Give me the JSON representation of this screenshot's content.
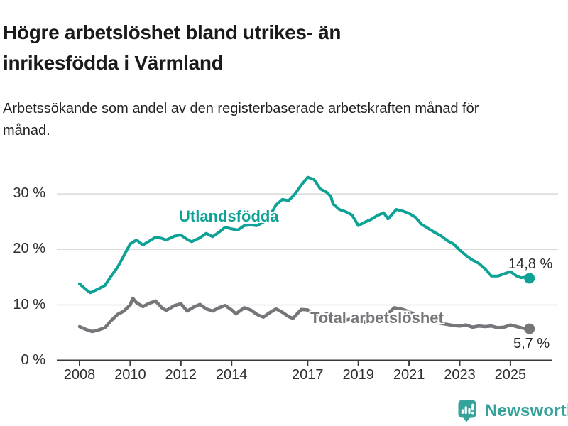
{
  "header": {
    "title": "Högre arbetslöshet bland utrikes- än inrikesfödda i Värmland",
    "subtitle": "Arbetssökande som andel av den registerbaserade arbetskraften månad för månad."
  },
  "chart_data": {
    "type": "line",
    "title": "Högre arbetslöshet bland utrikes- än inrikesfödda i Värmland",
    "subtitle": "Arbetssökande som andel av den registerbaserade arbetskraften månad för månad.",
    "unit": "%",
    "ylim": [
      0,
      35
    ],
    "x_range": [
      2008,
      2025.75
    ],
    "grid": "horizontal",
    "legend_position": "inline-labels",
    "y_ticks": [
      {
        "value": 0,
        "label": "0 %"
      },
      {
        "value": 10,
        "label": "10 %"
      },
      {
        "value": 20,
        "label": "20 %"
      },
      {
        "value": 30,
        "label": "30 %"
      }
    ],
    "x_ticks": [
      {
        "value": 2008,
        "label": "2008"
      },
      {
        "value": 2010,
        "label": "2010"
      },
      {
        "value": 2012,
        "label": "2012"
      },
      {
        "value": 2014,
        "label": "2014"
      },
      {
        "value": 2017,
        "label": "2017"
      },
      {
        "value": 2019,
        "label": "2019"
      },
      {
        "value": 2021,
        "label": "2021"
      },
      {
        "value": 2023,
        "label": "2023"
      },
      {
        "value": 2025,
        "label": "2025"
      }
    ],
    "series": [
      {
        "name": "Utlandsfödda",
        "color": "#0ca295",
        "end_label": "14,8 %",
        "end_value": 14.8,
        "points": [
          [
            2008.0,
            13.8
          ],
          [
            2008.25,
            12.8
          ],
          [
            2008.42,
            12.2
          ],
          [
            2008.75,
            12.9
          ],
          [
            2009.0,
            13.5
          ],
          [
            2009.25,
            15.2
          ],
          [
            2009.5,
            16.8
          ],
          [
            2009.75,
            18.9
          ],
          [
            2010.0,
            21.0
          ],
          [
            2010.25,
            21.7
          ],
          [
            2010.5,
            20.8
          ],
          [
            2010.75,
            21.5
          ],
          [
            2011.0,
            22.2
          ],
          [
            2011.25,
            22.0
          ],
          [
            2011.42,
            21.7
          ],
          [
            2011.75,
            22.4
          ],
          [
            2012.0,
            22.6
          ],
          [
            2012.25,
            21.8
          ],
          [
            2012.42,
            21.4
          ],
          [
            2012.75,
            22.1
          ],
          [
            2013.0,
            22.9
          ],
          [
            2013.25,
            22.3
          ],
          [
            2013.5,
            23.1
          ],
          [
            2013.75,
            24.0
          ],
          [
            2014.0,
            23.7
          ],
          [
            2014.25,
            23.5
          ],
          [
            2014.5,
            24.3
          ],
          [
            2014.75,
            24.4
          ],
          [
            2015.0,
            24.3
          ],
          [
            2015.25,
            24.9
          ],
          [
            2015.5,
            26.0
          ],
          [
            2015.75,
            28.0
          ],
          [
            2016.0,
            29.0
          ],
          [
            2016.25,
            28.8
          ],
          [
            2016.5,
            30.0
          ],
          [
            2016.75,
            31.6
          ],
          [
            2017.0,
            33.0
          ],
          [
            2017.25,
            32.6
          ],
          [
            2017.5,
            30.9
          ],
          [
            2017.75,
            30.3
          ],
          [
            2017.92,
            29.5
          ],
          [
            2018.0,
            28.2
          ],
          [
            2018.25,
            27.2
          ],
          [
            2018.5,
            26.8
          ],
          [
            2018.75,
            26.2
          ],
          [
            2019.0,
            24.3
          ],
          [
            2019.25,
            24.9
          ],
          [
            2019.5,
            25.4
          ],
          [
            2019.75,
            26.1
          ],
          [
            2020.0,
            26.6
          ],
          [
            2020.17,
            25.5
          ],
          [
            2020.5,
            27.2
          ],
          [
            2020.75,
            26.9
          ],
          [
            2021.0,
            26.5
          ],
          [
            2021.25,
            25.8
          ],
          [
            2021.5,
            24.5
          ],
          [
            2021.75,
            23.8
          ],
          [
            2022.0,
            23.1
          ],
          [
            2022.25,
            22.5
          ],
          [
            2022.5,
            21.6
          ],
          [
            2022.75,
            21.0
          ],
          [
            2023.0,
            19.9
          ],
          [
            2023.25,
            18.9
          ],
          [
            2023.5,
            18.1
          ],
          [
            2023.75,
            17.5
          ],
          [
            2024.0,
            16.5
          ],
          [
            2024.25,
            15.2
          ],
          [
            2024.5,
            15.2
          ],
          [
            2024.75,
            15.6
          ],
          [
            2025.0,
            16.0
          ],
          [
            2025.25,
            15.2
          ],
          [
            2025.42,
            14.9
          ],
          [
            2025.6,
            15.0
          ],
          [
            2025.75,
            14.8
          ]
        ]
      },
      {
        "name": "Total arbetslöshet",
        "color": "#76767a",
        "end_label": "5,7 %",
        "end_value": 5.7,
        "points": [
          [
            2008.0,
            6.1
          ],
          [
            2008.25,
            5.6
          ],
          [
            2008.5,
            5.2
          ],
          [
            2008.75,
            5.5
          ],
          [
            2009.0,
            5.9
          ],
          [
            2009.25,
            7.2
          ],
          [
            2009.5,
            8.3
          ],
          [
            2009.75,
            8.9
          ],
          [
            2010.0,
            10.0
          ],
          [
            2010.1,
            11.2
          ],
          [
            2010.25,
            10.4
          ],
          [
            2010.5,
            9.7
          ],
          [
            2010.75,
            10.3
          ],
          [
            2011.0,
            10.7
          ],
          [
            2011.25,
            9.5
          ],
          [
            2011.42,
            9.0
          ],
          [
            2011.75,
            9.9
          ],
          [
            2012.0,
            10.2
          ],
          [
            2012.25,
            8.9
          ],
          [
            2012.5,
            9.6
          ],
          [
            2012.75,
            10.1
          ],
          [
            2013.0,
            9.3
          ],
          [
            2013.25,
            8.9
          ],
          [
            2013.5,
            9.5
          ],
          [
            2013.75,
            9.9
          ],
          [
            2014.0,
            9.1
          ],
          [
            2014.17,
            8.4
          ],
          [
            2014.5,
            9.5
          ],
          [
            2014.75,
            9.1
          ],
          [
            2015.0,
            8.3
          ],
          [
            2015.25,
            7.8
          ],
          [
            2015.5,
            8.6
          ],
          [
            2015.75,
            9.3
          ],
          [
            2016.0,
            8.7
          ],
          [
            2016.25,
            7.9
          ],
          [
            2016.42,
            7.6
          ],
          [
            2016.75,
            9.2
          ],
          [
            2017.0,
            9.1
          ],
          [
            2017.25,
            8.3
          ],
          [
            2017.5,
            8.0
          ],
          [
            2017.75,
            8.4
          ],
          [
            2018.0,
            8.1
          ],
          [
            2018.25,
            7.5
          ],
          [
            2018.5,
            7.3
          ],
          [
            2018.75,
            7.5
          ],
          [
            2019.0,
            7.1
          ],
          [
            2019.25,
            6.9
          ],
          [
            2019.5,
            7.1
          ],
          [
            2019.75,
            7.3
          ],
          [
            2020.0,
            7.4
          ],
          [
            2020.25,
            8.8
          ],
          [
            2020.42,
            9.5
          ],
          [
            2020.75,
            9.2
          ],
          [
            2021.0,
            8.8
          ],
          [
            2021.25,
            8.2
          ],
          [
            2021.5,
            7.8
          ],
          [
            2021.75,
            7.4
          ],
          [
            2022.0,
            7.0
          ],
          [
            2022.25,
            6.7
          ],
          [
            2022.5,
            6.5
          ],
          [
            2022.75,
            6.3
          ],
          [
            2023.0,
            6.2
          ],
          [
            2023.25,
            6.4
          ],
          [
            2023.5,
            6.0
          ],
          [
            2023.75,
            6.2
          ],
          [
            2024.0,
            6.1
          ],
          [
            2024.25,
            6.2
          ],
          [
            2024.5,
            5.9
          ],
          [
            2024.75,
            6.0
          ],
          [
            2025.0,
            6.4
          ],
          [
            2025.25,
            6.1
          ],
          [
            2025.5,
            5.8
          ],
          [
            2025.75,
            5.7
          ]
        ]
      }
    ]
  },
  "footer": {
    "brand_name": "Newsworthy",
    "brand_color": "#35a39a",
    "logo_icon": "speech-bubble-bar-chart"
  }
}
